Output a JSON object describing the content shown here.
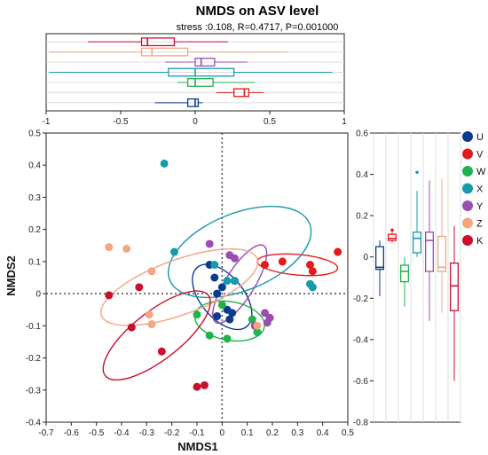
{
  "chart_data": [
    {
      "type": "scatter",
      "title": "NMDS on ASV level",
      "subtitle": "stress :0.108, R=0.4717, P=0.001000",
      "xlabel": "NMDS1",
      "ylabel": "NMDS2",
      "xlim": [
        -0.7,
        0.5
      ],
      "ylim": [
        -0.4,
        0.5
      ],
      "xticks": [
        "-0.7",
        "-0.6",
        "-0.5",
        "-0.4",
        "-0.3",
        "-0.2",
        "-0.1",
        "0",
        "0.1",
        "0.2",
        "0.3",
        "0.4",
        "0.5"
      ],
      "yticks": [
        "-0.4",
        "-0.3",
        "-0.2",
        "-0.1",
        "0",
        "0.1",
        "0.2",
        "0.3",
        "0.4",
        "0.5"
      ],
      "reference_lines": {
        "x": 0,
        "y": 0,
        "style": "dotted"
      },
      "legend_position": "right",
      "series": [
        {
          "name": "U",
          "color": "#0b3b8c",
          "points": [
            [
              -0.05,
              0.09
            ],
            [
              -0.03,
              0.05
            ],
            [
              -0.02,
              0.0
            ],
            [
              0.0,
              0.02
            ],
            [
              0.02,
              -0.05
            ],
            [
              0.04,
              -0.06
            ],
            [
              -0.02,
              -0.07
            ],
            [
              0.05,
              0.04
            ],
            [
              0.03,
              -0.08
            ]
          ],
          "ellipse": {
            "cx": 0.0,
            "cy": -0.01,
            "rx": 0.085,
            "ry": 0.12,
            "angle": -40
          }
        },
        {
          "name": "V",
          "color": "#e31a1c",
          "points": [
            [
              0.17,
              0.09
            ],
            [
              0.24,
              0.1
            ],
            [
              0.35,
              0.09
            ],
            [
              0.36,
              0.07
            ],
            [
              0.46,
              0.13
            ]
          ],
          "ellipse": {
            "cx": 0.3,
            "cy": 0.09,
            "rx": 0.16,
            "ry": 0.032,
            "angle": 5
          }
        },
        {
          "name": "W",
          "color": "#22b14c",
          "points": [
            [
              0.0,
              -0.035
            ],
            [
              0.12,
              -0.08
            ],
            [
              -0.05,
              -0.13
            ],
            [
              0.02,
              -0.14
            ],
            [
              0.14,
              -0.12
            ],
            [
              -0.1,
              -0.065
            ]
          ],
          "ellipse": {
            "cx": 0.03,
            "cy": -0.085,
            "rx": 0.14,
            "ry": 0.06,
            "angle": 10
          }
        },
        {
          "name": "X",
          "color": "#179aa9",
          "points": [
            [
              -0.23,
              0.405
            ],
            [
              -0.19,
              0.13
            ],
            [
              -0.03,
              0.09
            ],
            [
              0.02,
              0.04
            ],
            [
              0.05,
              0.04
            ],
            [
              0.35,
              0.03
            ],
            [
              0.36,
              0.02
            ],
            [
              0.36,
              0.02
            ]
          ],
          "ellipse": {
            "cx": 0.07,
            "cy": 0.13,
            "rx": 0.3,
            "ry": 0.12,
            "angle": -22
          }
        },
        {
          "name": "Y",
          "color": "#9b4db0",
          "points": [
            [
              -0.05,
              0.155
            ],
            [
              0.03,
              0.12
            ],
            [
              0.05,
              0.11
            ],
            [
              0.17,
              -0.06
            ],
            [
              0.18,
              -0.09
            ],
            [
              0.13,
              -0.1
            ],
            [
              0.19,
              -0.075
            ]
          ],
          "ellipse": {
            "cx": 0.07,
            "cy": 0.03,
            "rx": 0.18,
            "ry": 0.045,
            "angle": -58
          }
        },
        {
          "name": "Z",
          "color": "#f4a582",
          "points": [
            [
              -0.45,
              0.145
            ],
            [
              -0.38,
              0.14
            ],
            [
              -0.28,
              0.07
            ],
            [
              -0.29,
              -0.065
            ],
            [
              -0.28,
              -0.095
            ],
            [
              0.14,
              -0.1
            ]
          ],
          "ellipse": {
            "cx": -0.17,
            "cy": 0.02,
            "rx": 0.33,
            "ry": 0.085,
            "angle": -20
          }
        },
        {
          "name": "K",
          "color": "#c8102e",
          "points": [
            [
              -0.45,
              -0.005
            ],
            [
              -0.33,
              0.02
            ],
            [
              -0.36,
              -0.105
            ],
            [
              -0.24,
              -0.18
            ],
            [
              -0.1,
              -0.29
            ],
            [
              -0.07,
              -0.285
            ]
          ],
          "ellipse": {
            "cx": -0.26,
            "cy": -0.13,
            "rx": 0.26,
            "ry": 0.075,
            "angle": -38
          }
        }
      ]
    },
    {
      "type": "boxplot",
      "axis": "NMDS1",
      "xlim": [
        -1,
        1
      ],
      "xticks": [
        "-1",
        "-0.5",
        "0",
        "0.5",
        "1"
      ],
      "groups": [
        {
          "name": "U",
          "color": "#0b3b8c",
          "min": -0.27,
          "q1": -0.05,
          "median": 0.0,
          "q3": 0.02,
          "max": 0.05
        },
        {
          "name": "V",
          "color": "#e31a1c",
          "min": 0.14,
          "q1": 0.26,
          "median": 0.33,
          "q3": 0.36,
          "max": 0.46
        },
        {
          "name": "W",
          "color": "#22b14c",
          "min": -0.12,
          "q1": -0.05,
          "median": 0.0,
          "q3": 0.12,
          "max": 0.4
        },
        {
          "name": "X",
          "color": "#179aa9",
          "min": -0.98,
          "q1": -0.18,
          "median": 0.0,
          "q3": 0.26,
          "max": 0.92
        },
        {
          "name": "Y",
          "color": "#9b4db0",
          "min": -0.2,
          "q1": 0.0,
          "median": 0.04,
          "q3": 0.13,
          "max": 0.35
        },
        {
          "name": "Z",
          "color": "#f4a582",
          "min": -0.98,
          "q1": -0.36,
          "median": -0.29,
          "q3": -0.05,
          "max": 0.62
        },
        {
          "name": "K",
          "color": "#c8102e",
          "min": -0.72,
          "q1": -0.36,
          "median": -0.32,
          "q3": -0.14,
          "max": 0.22
        }
      ]
    },
    {
      "type": "boxplot",
      "axis": "NMDS2",
      "ylim": [
        -0.8,
        0.6
      ],
      "yticks": [
        "0.6",
        "0.4",
        "0.2",
        "0",
        "-0.2",
        "-0.4",
        "-0.6",
        "-0.8"
      ],
      "groups": [
        {
          "name": "U",
          "color": "#0b3b8c",
          "min": -0.19,
          "q1": -0.06,
          "median": -0.05,
          "q3": 0.05,
          "max": 0.08,
          "outliers": []
        },
        {
          "name": "V",
          "color": "#e31a1c",
          "min": 0.07,
          "q1": 0.08,
          "median": 0.09,
          "q3": 0.11,
          "max": 0.12,
          "outliers": [
            0.13
          ]
        },
        {
          "name": "W",
          "color": "#22b14c",
          "min": -0.24,
          "q1": -0.12,
          "median": -0.07,
          "q3": -0.04,
          "max": 0.0,
          "outliers": []
        },
        {
          "name": "X",
          "color": "#179aa9",
          "min": 0.0,
          "q1": 0.02,
          "median": 0.09,
          "q3": 0.12,
          "max": 0.32,
          "outliers": [
            0.41
          ]
        },
        {
          "name": "Y",
          "color": "#9b4db0",
          "min": -0.31,
          "q1": -0.07,
          "median": 0.08,
          "q3": 0.12,
          "max": 0.37,
          "outliers": []
        },
        {
          "name": "Z",
          "color": "#f4a582",
          "min": -0.27,
          "q1": -0.07,
          "median": -0.05,
          "q3": 0.1,
          "max": 0.38,
          "outliers": []
        },
        {
          "name": "K",
          "color": "#c8102e",
          "min": -0.6,
          "q1": -0.26,
          "median": -0.14,
          "q3": -0.03,
          "max": 0.15,
          "outliers": []
        }
      ]
    }
  ]
}
